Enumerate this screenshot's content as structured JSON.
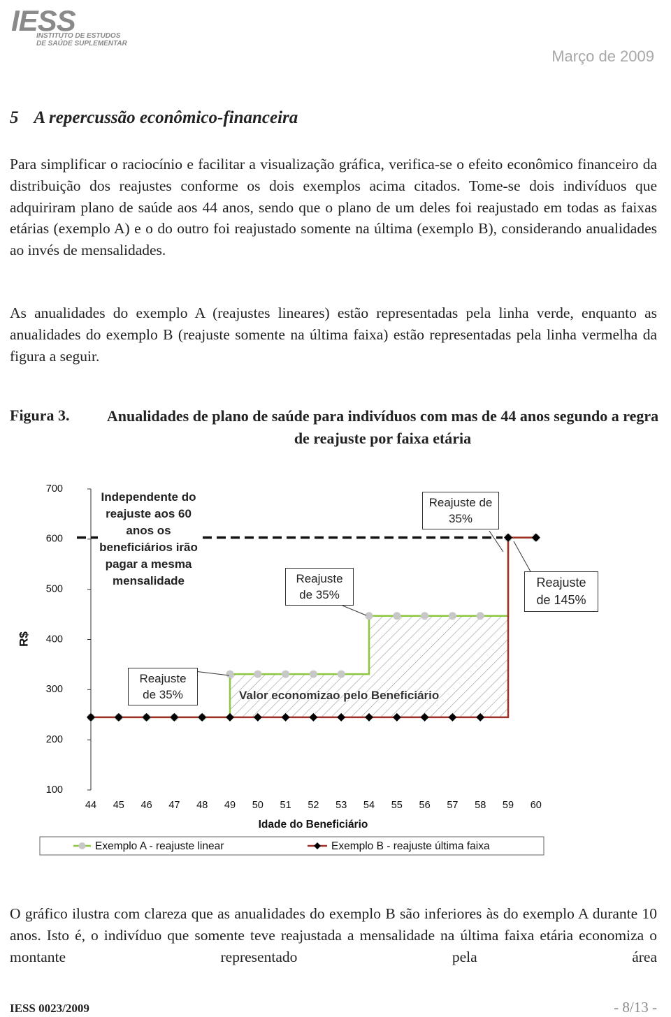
{
  "header": {
    "logo": "IESS",
    "logo_subtitle": [
      "INSTITUTO DE ESTUDOS",
      "DE SAÚDE SUPLEMENTAR"
    ],
    "date": "Março de 2009"
  },
  "section": {
    "number": "5",
    "title": "A repercussão econômico-financeira"
  },
  "paragraphs": [
    "Para simplificar o raciocínio e facilitar a visualização gráfica, verifica-se o efeito econômico financeiro da distribuição dos reajustes conforme os dois exemplos acima citados. Tome-se dois indivíduos que adquiriram plano de saúde aos 44 anos, sendo que o plano de um deles foi reajustado em todas as faixas etárias (exemplo A) e o do outro foi reajustado somente na última (exemplo B), considerando anualidades ao invés de mensalidades.",
    "As anualidades do exemplo A (reajustes lineares) estão representadas pela linha verde, enquanto as anualidades do exemplo B (reajuste somente na última faixa) estão representadas pela linha vermelha da figura a seguir."
  ],
  "figure": {
    "label": "Figura 3.",
    "caption": "Anualidades de plano de saúde para indivíduos com mas de 44 anos segundo a regra de reajuste por faixa etária"
  },
  "chart_data": {
    "type": "line",
    "step": true,
    "y_label": "R$",
    "x_label": "Idade do Beneficiário",
    "categories": [
      "44",
      "45",
      "46",
      "47",
      "48",
      "49",
      "50",
      "51",
      "52",
      "53",
      "54",
      "55",
      "56",
      "57",
      "58",
      "59",
      "60"
    ],
    "ylim": [
      100,
      700
    ],
    "yticks": [
      100,
      200,
      300,
      400,
      500,
      600,
      700
    ],
    "series": [
      {
        "name": "Exemplo A - reajuste linear",
        "color": "#8dc63f",
        "marker": "circle",
        "marker_color": "#c8c8c8",
        "values": [
          245,
          245,
          245,
          245,
          245,
          331,
          331,
          331,
          331,
          331,
          447,
          447,
          447,
          447,
          447,
          603,
          603
        ]
      },
      {
        "name": "Exemplo B - reajuste última faixa",
        "color": "#a0302a",
        "marker": "diamond",
        "marker_color": "#000000",
        "values": [
          245,
          245,
          245,
          245,
          245,
          245,
          245,
          245,
          245,
          245,
          245,
          245,
          245,
          245,
          245,
          603,
          603
        ]
      }
    ],
    "reference_line": 603,
    "annotations": [
      "Independente do reajuste aos 60 anos os beneficiários irão pagar a mesma mensalidade",
      "Reajuste de 35%",
      "Reajuste de 35%",
      "Reajuste de 35%",
      "Reajuste de 145%",
      "Valor economizao pelo Beneficiário"
    ],
    "legend": "bottom"
  },
  "closing_paragraph": "O gráfico ilustra com clareza que as anualidades do exemplo B são inferiores às do exemplo A durante 10 anos. Isto é, o indivíduo que somente teve reajustada a mensalidade na última faixa etária economiza o montante representado pela área",
  "footer": {
    "left": "IESS 0023/2009",
    "right": "- 8/13 -"
  }
}
